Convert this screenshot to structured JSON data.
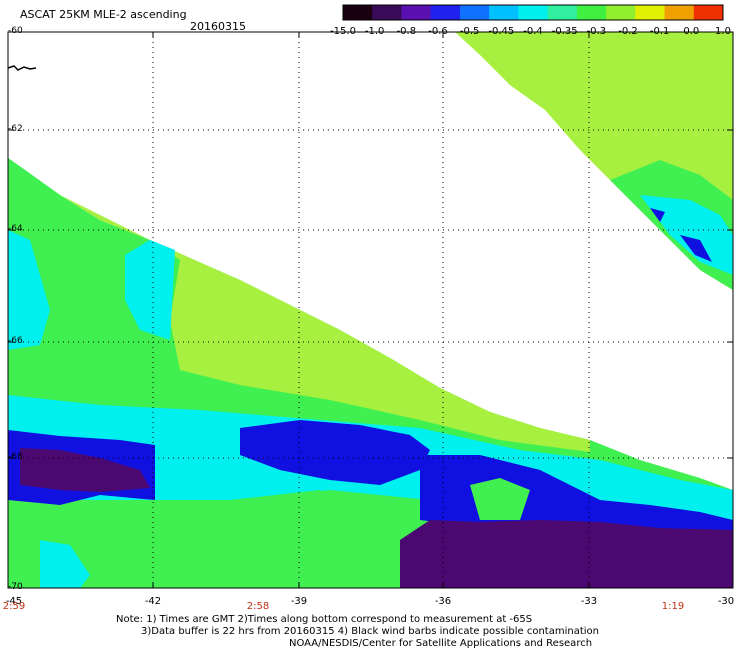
{
  "header": {
    "title": "ASCAT 25KM MLE-2 ascending",
    "date": "20160315"
  },
  "color_scale": {
    "labels": [
      "-15.0",
      "-1.0",
      "-0.8",
      "-0.6",
      "-0.5",
      "-0.45",
      "-0.4",
      "-0.35",
      "-0.3",
      "-0.2",
      "-0.1",
      "0.0",
      "1.0"
    ],
    "colors": [
      "#1a0010",
      "#3a0a5a",
      "#5a10b0",
      "#2020f0",
      "#1070ff",
      "#00c0ff",
      "#00f0f0",
      "#30f0a0",
      "#40f040",
      "#90f030",
      "#e0f000",
      "#f0a000",
      "#f03000"
    ]
  },
  "lat_labels": [
    "-60",
    "-62",
    "-64",
    "-66",
    "-68",
    "-70"
  ],
  "lon_labels": [
    "-45",
    "-42",
    "-39",
    "-36",
    "-33",
    "-30"
  ],
  "time_labels": [
    "2:59",
    "2:58",
    "1:19"
  ],
  "notes": {
    "line1": "Note: 1) Times are GMT 2)Times along bottom correspond to measurement at -65S",
    "line2": "3)Data buffer is 22 hrs from 20160315 4) Black wind barbs indicate possible contamination",
    "line3": "NOAA/NESDIS/Center for Satellite Applications and Research"
  },
  "map_colors": {
    "lightgreen": "#a8f040",
    "green": "#40f050",
    "cyan": "#00f0f0",
    "blue": "#1010e0",
    "purple": "#4a0870"
  }
}
